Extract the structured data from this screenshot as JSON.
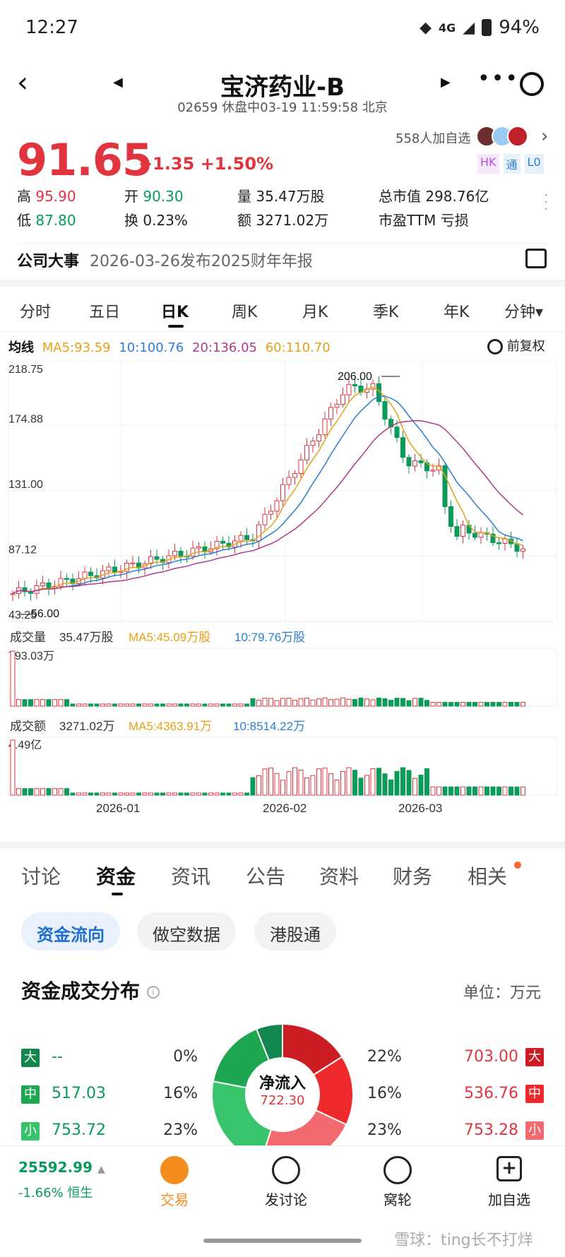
{
  "status": {
    "time": "12:27",
    "network": "4G",
    "signal_r": "R",
    "battery": "94%"
  },
  "header": {
    "title": "宝济药业-B",
    "subtitle": "02659 休盘中03-19 11:59:58 北京"
  },
  "quote": {
    "price": "91.65",
    "change": "+1.35",
    "change_pct": "+1.50%",
    "favorites": "558人加自选",
    "tags": [
      "HK",
      "通",
      "L0"
    ],
    "high_label": "高",
    "high": "95.90",
    "low_label": "低",
    "low": "87.80",
    "open_label": "开",
    "open": "90.30",
    "turnover_label": "换",
    "turnover": "0.23%",
    "volume_label": "量",
    "volume": "35.47万股",
    "amount_label": "额",
    "amount": "3271.02万",
    "mktcap_label": "总市值",
    "mktcap": "298.76亿",
    "pe_label": "市盈TTM",
    "pe": "亏损"
  },
  "event": {
    "label": "公司大事",
    "text": "2026-03-26发布2025财年年报"
  },
  "ktabs": [
    "分时",
    "五日",
    "日K",
    "周K",
    "月K",
    "季K",
    "年K",
    "分钟▾"
  ],
  "ma": {
    "label": "均线",
    "ma5": "MA5:93.59",
    "ma10": "10:100.76",
    "ma20": "20:136.05",
    "ma60": "60:110.70",
    "adjust": "前复权"
  },
  "chart_data": {
    "type": "candlestick",
    "y_ticks": [
      "218.75",
      "174.88",
      "131.00",
      "87.12",
      "43.25"
    ],
    "ylim": [
      43.25,
      218.75
    ],
    "high_marker": "206.00",
    "low_marker": "56.00",
    "x_ticks": [
      "2026-01",
      "2026-02",
      "2026-03"
    ],
    "volume": {
      "label": "成交量",
      "value": "35.47万股",
      "ma5": "MA5:45.09万股",
      "ma10": "10:79.76万股",
      "max": "793.03万"
    },
    "amount": {
      "label": "成交额",
      "value": "3271.02万",
      "ma5": "MA5:4363.91万",
      "ma10": "10:8514.22万",
      "max": "4.49亿"
    }
  },
  "main_tabs": [
    "讨论",
    "资金",
    "资讯",
    "公告",
    "资料",
    "财务",
    "相关"
  ],
  "pills": [
    "资金流向",
    "做空数据",
    "港股通"
  ],
  "flow": {
    "title": "资金成交分布",
    "unit": "单位：万元",
    "center_label": "净流入",
    "center_value": "722.30",
    "left": [
      {
        "tag": "大",
        "value": "--",
        "pct": "0%"
      },
      {
        "tag": "中",
        "value": "517.03",
        "pct": "16%"
      },
      {
        "tag": "小",
        "value": "753.72",
        "pct": "23%"
      }
    ],
    "right": [
      {
        "tag": "大",
        "value": "703.00",
        "pct": "22%"
      },
      {
        "tag": "中",
        "value": "536.76",
        "pct": "16%"
      },
      {
        "tag": "小",
        "value": "753.28",
        "pct": "23%"
      }
    ]
  },
  "bottom": {
    "index_value": "25592.99",
    "index_change": "-1.66%",
    "index_name": "恒生",
    "nav": [
      "交易",
      "发讨论",
      "窝轮",
      "加自选"
    ],
    "watermark": "雪球：ting长不打烊"
  }
}
